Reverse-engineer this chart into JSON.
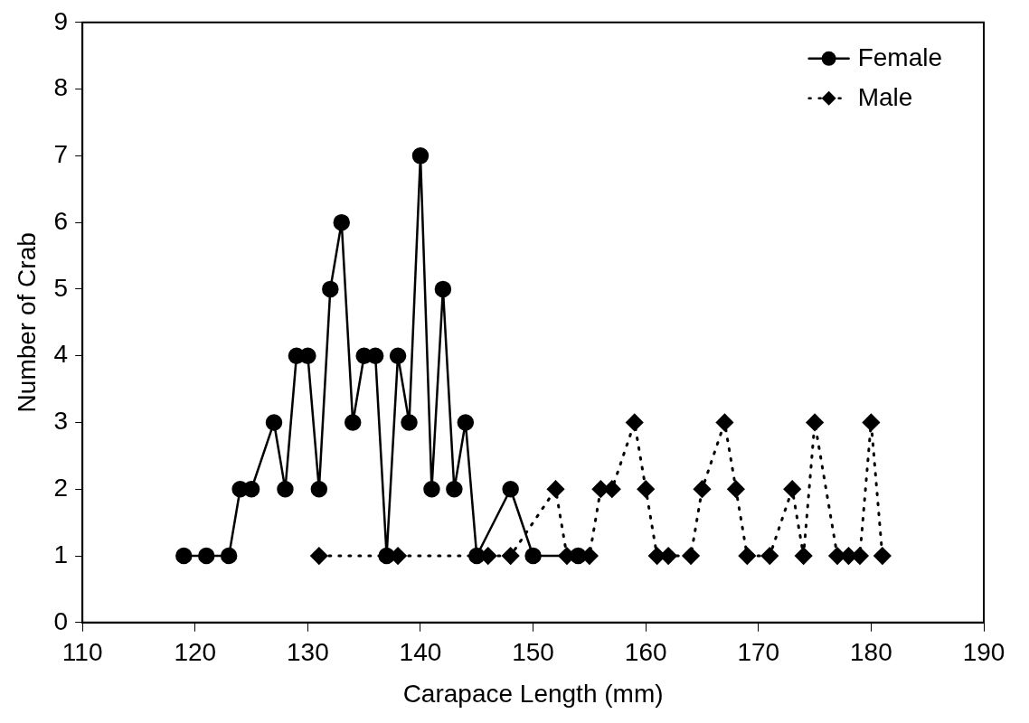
{
  "chart_data": {
    "type": "line",
    "xlabel": "Carapace Length (mm)",
    "ylabel": "Number of Crab",
    "xlim": [
      110,
      190
    ],
    "xticks": [
      110,
      120,
      130,
      140,
      150,
      160,
      170,
      180,
      190
    ],
    "ylim": [
      0,
      9
    ],
    "yticks": [
      0,
      1,
      2,
      3,
      4,
      5,
      6,
      7,
      8,
      9
    ],
    "grid": false,
    "legend": "top right",
    "series": [
      {
        "name": "Female",
        "color": "#000000",
        "marker": "circle",
        "line_style": "solid",
        "x": [
          119,
          121,
          123,
          124,
          125,
          127,
          128,
          129,
          130,
          131,
          132,
          133,
          134,
          135,
          136,
          137,
          138,
          139,
          140,
          141,
          142,
          143,
          144,
          145,
          148,
          150,
          154
        ],
        "values": [
          1,
          1,
          1,
          2,
          2,
          3,
          2,
          4,
          4,
          2,
          5,
          6,
          3,
          4,
          4,
          1,
          4,
          3,
          7,
          2,
          5,
          2,
          3,
          1,
          2,
          1,
          1
        ]
      },
      {
        "name": "Male",
        "color": "#000000",
        "marker": "diamond",
        "line_style": "dotted",
        "x": [
          131,
          138,
          146,
          148,
          152,
          153,
          155,
          156,
          157,
          159,
          160,
          161,
          162,
          164,
          165,
          167,
          168,
          169,
          171,
          173,
          174,
          175,
          177,
          178,
          179,
          180,
          181
        ],
        "values": [
          1,
          1,
          1,
          1,
          2,
          1,
          1,
          2,
          2,
          3,
          2,
          1,
          1,
          1,
          2,
          3,
          2,
          1,
          1,
          2,
          1,
          3,
          1,
          1,
          1,
          3,
          1
        ]
      }
    ]
  }
}
